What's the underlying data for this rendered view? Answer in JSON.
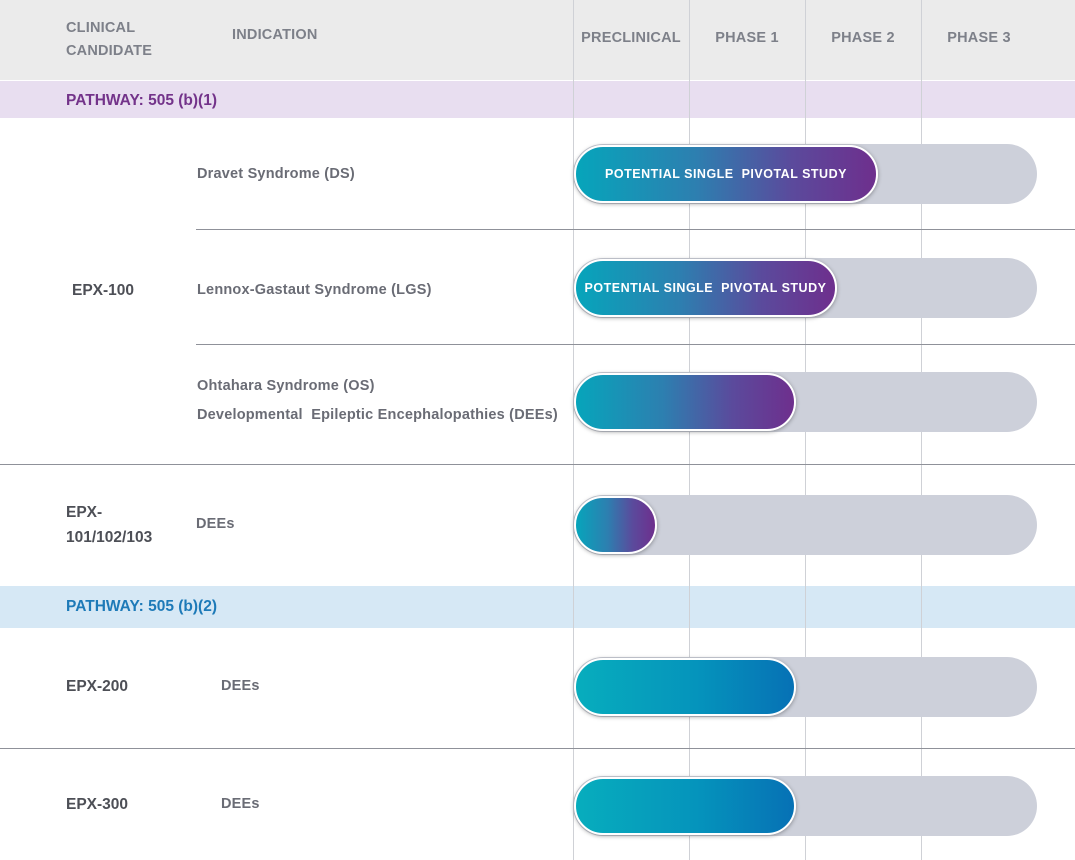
{
  "header": {
    "candidate_line1": "CLINICAL",
    "candidate_line2": "CANDIDATE",
    "indication": "INDICATION"
  },
  "pathways": {
    "p1": "PATHWAY: 505 (b)(1)",
    "p2": "PATHWAY: 505 (b)(2)"
  },
  "colors": {
    "pathway_1": "#73338a",
    "pathway_2": "#1d7ab8",
    "track": "#cdd0da",
    "bar_gradient_purple": [
      "#06a5bb",
      "#6e2f8d"
    ],
    "bar_gradient_blue": [
      "#07adbd",
      "#0671b5"
    ]
  },
  "candidates": {
    "epx100": "EPX-100",
    "epx101_line1": "EPX-",
    "epx101_line2": "101/102/103",
    "epx200": "EPX-200",
    "epx300": "EPX-300"
  },
  "indications": {
    "ds": "Dravet Syndrome (DS)",
    "lgs": "Lennox-Gastaut Syndrome (LGS)",
    "os": "Ohtahara Syndrome (OS)",
    "dees_long": "Developmental  Epileptic Encephalopathies (DEEs)",
    "dees_101": "DEEs",
    "dees_200": "DEEs",
    "dees_300": "DEEs"
  },
  "chart_data": {
    "type": "bar",
    "orientation": "horizontal",
    "stages": [
      "PRECLINICAL",
      "PHASE 1",
      "PHASE 2",
      "PHASE 3"
    ],
    "stage_range": [
      0,
      4
    ],
    "rows": [
      {
        "pathway": "PATHWAY: 505 (b)(1)",
        "candidate": "EPX-100",
        "indication": "Dravet Syndrome (DS)",
        "progress": 2.6,
        "label": "POTENTIAL SINGLE  PIVOTAL STUDY",
        "color": "purple"
      },
      {
        "pathway": "PATHWAY: 505 (b)(1)",
        "candidate": "EPX-100",
        "indication": "Lennox-Gastaut Syndrome (LGS)",
        "progress": 2.25,
        "label": "POTENTIAL SINGLE  PIVOTAL STUDY",
        "color": "purple"
      },
      {
        "pathway": "PATHWAY: 505 (b)(1)",
        "candidate": "EPX-100",
        "indication": "Ohtahara Syndrome (OS) / Developmental  Epileptic Encephalopathies (DEEs)",
        "progress": 1.9,
        "label": "",
        "color": "purple"
      },
      {
        "pathway": "PATHWAY: 505 (b)(1)",
        "candidate": "EPX-101/102/103",
        "indication": "DEEs",
        "progress": 0.7,
        "label": "",
        "color": "purple"
      },
      {
        "pathway": "PATHWAY: 505 (b)(2)",
        "candidate": "EPX-200",
        "indication": "DEEs",
        "progress": 1.9,
        "label": "",
        "color": "blue"
      },
      {
        "pathway": "PATHWAY: 505 (b)(2)",
        "candidate": "EPX-300",
        "indication": "DEEs",
        "progress": 1.9,
        "label": "",
        "color": "blue"
      }
    ]
  }
}
